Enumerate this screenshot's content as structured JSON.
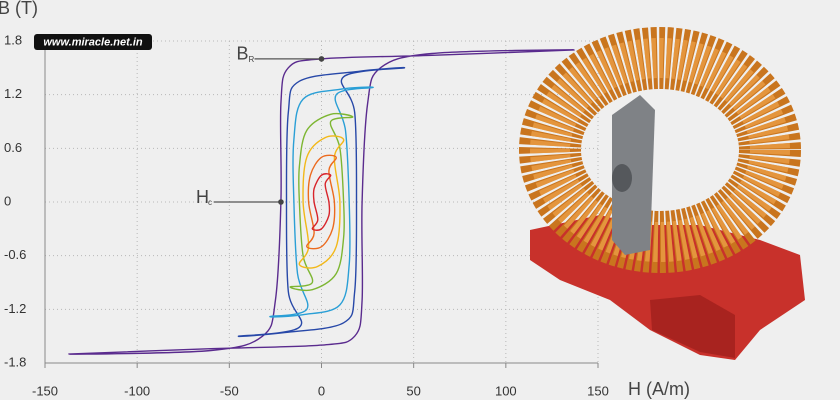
{
  "chart_data": {
    "type": "line",
    "y_label": "B (T)",
    "x_label": "H (A/m)",
    "watermark": "www.miracle.net.in",
    "xlim": [
      -150,
      150
    ],
    "xticks": [
      -150,
      -100,
      -50,
      0,
      50,
      100,
      150
    ],
    "ylim": [
      -1.8,
      1.8
    ],
    "yticks": [
      -1.8,
      -1.2,
      -0.6,
      0,
      0.6,
      1.2,
      1.8
    ],
    "grid": true,
    "series": [
      {
        "color": "#5a2b8e",
        "x": [
          137,
          60,
          0,
          -18,
          -22,
          -22,
          -25,
          -32,
          -60,
          -137,
          -60,
          0,
          18,
          22,
          22,
          25,
          32,
          60
        ],
        "values": [
          1.7,
          1.64,
          1.6,
          1.5,
          1.1,
          0,
          -1.1,
          -1.5,
          -1.66,
          -1.7,
          -1.64,
          -1.6,
          -1.5,
          -1.1,
          0,
          1.1,
          1.5,
          1.66
        ]
      },
      {
        "color": "#2748a8",
        "x": [
          45,
          20,
          -12,
          -18,
          -19,
          -18,
          -12,
          -45,
          -20,
          12,
          18,
          19,
          18,
          12
        ],
        "values": [
          1.5,
          1.46,
          1.35,
          1.0,
          0,
          -1.0,
          -1.4,
          -1.5,
          -1.46,
          -1.35,
          -1.0,
          0,
          1.0,
          1.4
        ]
      },
      {
        "color": "#2a9fd6",
        "x": [
          28,
          10,
          -10,
          -15,
          -15,
          -13,
          -8,
          -28,
          -10,
          10,
          15,
          15,
          13,
          8
        ],
        "values": [
          1.28,
          1.26,
          1.15,
          0.7,
          0,
          -0.8,
          -1.2,
          -1.28,
          -1.26,
          -1.15,
          -0.7,
          0,
          0.8,
          1.2
        ]
      },
      {
        "color": "#7db632",
        "x": [
          17,
          5,
          -8,
          -12,
          -12,
          -10,
          -5,
          -17,
          -5,
          8,
          12,
          12,
          10,
          5
        ],
        "values": [
          0.95,
          0.98,
          0.8,
          0.4,
          0,
          -0.6,
          -0.9,
          -0.95,
          -0.98,
          -0.8,
          -0.4,
          0,
          0.6,
          0.9
        ]
      },
      {
        "color": "#f2b818",
        "x": [
          12,
          2,
          -8,
          -10,
          -7,
          -12,
          -2,
          8,
          10,
          7
        ],
        "values": [
          0.7,
          0.72,
          0.5,
          0,
          -0.5,
          -0.7,
          -0.72,
          -0.5,
          0,
          0.5
        ]
      },
      {
        "color": "#ec6a1e",
        "x": [
          8,
          0,
          -6,
          -7,
          -4,
          -8,
          0,
          6,
          7,
          4
        ],
        "values": [
          0.5,
          0.5,
          0.3,
          0,
          -0.35,
          -0.5,
          -0.5,
          -0.3,
          0,
          0.35
        ]
      },
      {
        "color": "#d8232a",
        "x": [
          5,
          0,
          -4,
          -4,
          -2,
          -5,
          0,
          4,
          4,
          2
        ],
        "values": [
          0.3,
          0.3,
          0.15,
          0,
          -0.2,
          -0.3,
          -0.3,
          -0.15,
          0,
          0.2
        ]
      }
    ],
    "annotations": [
      {
        "text": "B",
        "sub": "R",
        "x": 0,
        "y": 1.6
      },
      {
        "text": "H",
        "sub": "c",
        "x": -22,
        "y": 0
      }
    ]
  }
}
